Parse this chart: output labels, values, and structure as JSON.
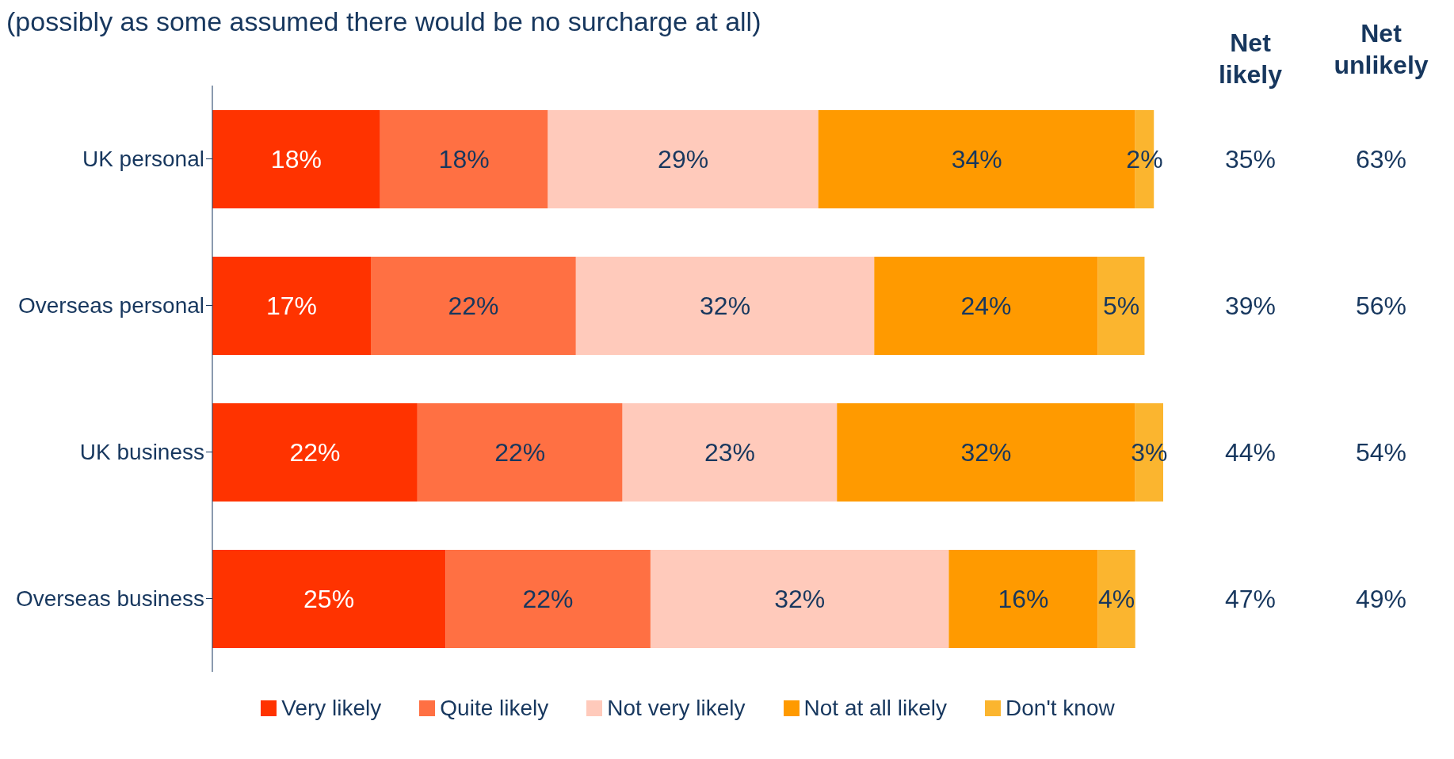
{
  "chart_data": {
    "type": "bar",
    "orientation": "horizontal",
    "stacked": true,
    "legend": "bottom",
    "title": "(possibly as some assumed there would be no surcharge at all)",
    "categories": [
      "UK personal",
      "Overseas personal",
      "UK business",
      "Overseas business"
    ],
    "series": [
      {
        "name": "Very likely",
        "color": "#ff3300",
        "values": [
          18,
          17,
          22,
          25
        ],
        "value_labels": [
          "18%",
          "17%",
          "22%",
          "25%"
        ]
      },
      {
        "name": "Quite likely",
        "color": "#ff7043",
        "values": [
          18,
          22,
          22,
          22
        ],
        "value_labels": [
          "18%",
          "22%",
          "22%",
          "22%"
        ]
      },
      {
        "name": "Not very likely",
        "color": "#ffcabb",
        "values": [
          29,
          32,
          23,
          32
        ],
        "value_labels": [
          "29%",
          "32%",
          "23%",
          "32%"
        ]
      },
      {
        "name": "Not at all likely",
        "color": "#ff9a00",
        "values": [
          34,
          24,
          32,
          16
        ],
        "value_labels": [
          "34%",
          "24%",
          "32%",
          "16%"
        ]
      },
      {
        "name": "Don't know",
        "color": "#fbb52f",
        "values": [
          2,
          5,
          3,
          4
        ],
        "value_labels": [
          "2%",
          "5%",
          "3%",
          "4%"
        ]
      }
    ],
    "annotations": [
      "Net likely",
      "Net unlikely",
      "35%",
      "63%",
      "39%",
      "56%",
      "44%",
      "54%",
      "47%",
      "49%"
    ]
  }
}
